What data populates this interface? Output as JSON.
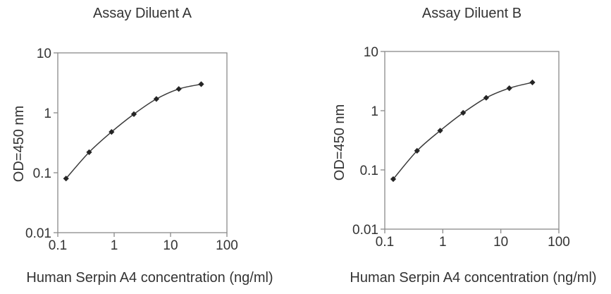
{
  "colors": {
    "background": "#ffffff",
    "axis": "#8a8a8a",
    "curve": "#3a3a3a",
    "marker": "#252525",
    "text": "#333333"
  },
  "chart_data": [
    {
      "type": "line",
      "title": "Assay Diluent A",
      "xlabel": "Human Serpin A4 concentration (ng/ml)",
      "ylabel": "OD=450 nm",
      "x_scale": "log",
      "y_scale": "log",
      "xlim": [
        0.1,
        100
      ],
      "ylim": [
        0.01,
        10
      ],
      "grid": false,
      "x_ticks": [
        0.1,
        1,
        10,
        100
      ],
      "x_tick_labels": [
        "0.1",
        "1",
        "10",
        "100"
      ],
      "y_ticks": [
        10,
        1,
        0.1,
        0.01
      ],
      "y_tick_labels": [
        "10",
        "1",
        "0.1",
        "0.01"
      ],
      "series": [
        {
          "x": [
            0.14,
            0.36,
            0.9,
            2.24,
            5.6,
            14,
            35
          ],
          "y": [
            0.08,
            0.22,
            0.48,
            0.95,
            1.7,
            2.5,
            3.0
          ]
        }
      ]
    },
    {
      "type": "line",
      "title": "Assay Diluent B",
      "xlabel": "Human Serpin A4 concentration (ng/ml)",
      "ylabel": "OD=450 nm",
      "x_scale": "log",
      "y_scale": "log",
      "xlim": [
        0.1,
        100
      ],
      "ylim": [
        0.01,
        10
      ],
      "grid": false,
      "x_ticks": [
        0.1,
        1,
        10,
        100
      ],
      "x_tick_labels": [
        "0.1",
        "1",
        "10",
        "100"
      ],
      "y_ticks": [
        10,
        1,
        0.1,
        0.01
      ],
      "y_tick_labels": [
        "10",
        "1",
        "0.1",
        "0.01"
      ],
      "series": [
        {
          "x": [
            0.14,
            0.36,
            0.9,
            2.24,
            5.6,
            14,
            35
          ],
          "y": [
            0.07,
            0.21,
            0.46,
            0.92,
            1.65,
            2.4,
            3.0
          ]
        }
      ]
    }
  ]
}
